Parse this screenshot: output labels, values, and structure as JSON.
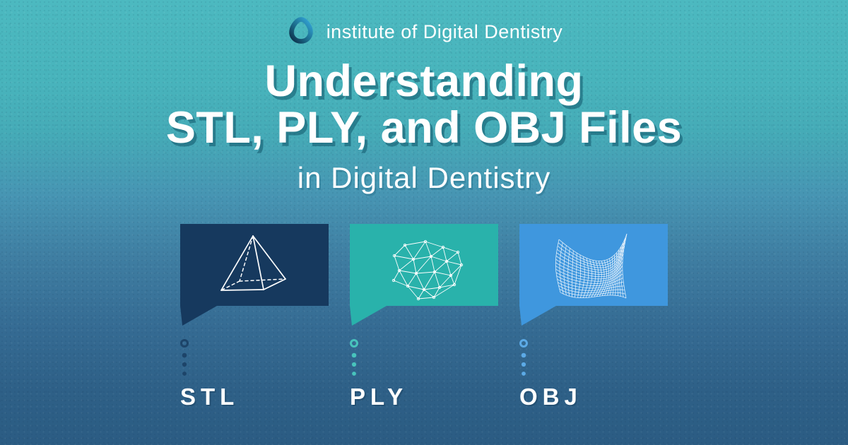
{
  "brand": {
    "logo_icon": "idd-triangle-loop-logo",
    "name": "institute of Digital Dentistry"
  },
  "title": {
    "line1": "Understanding",
    "line2": "STL, PLY, and OBJ Files",
    "subtitle": "in Digital Dentistry"
  },
  "cards": [
    {
      "label": "STL",
      "icon": "pyramid-wireframe",
      "color": "#16395E",
      "dot_color": "#1D4469"
    },
    {
      "label": "PLY",
      "icon": "triangulated-mesh-wireframe",
      "color": "#29B2AB",
      "dot_color": "#48C3BC"
    },
    {
      "label": "OBJ",
      "icon": "curved-surface-wireframe",
      "color": "#3F97DE",
      "dot_color": "#5CAAE6"
    }
  ],
  "colors": {
    "background_top": "#4CB9C0",
    "background_bottom": "#2B5C83",
    "title_shadow": "#2E7F96",
    "card_wireframe": "#FFFFFF",
    "text": "#FFFFFF"
  }
}
